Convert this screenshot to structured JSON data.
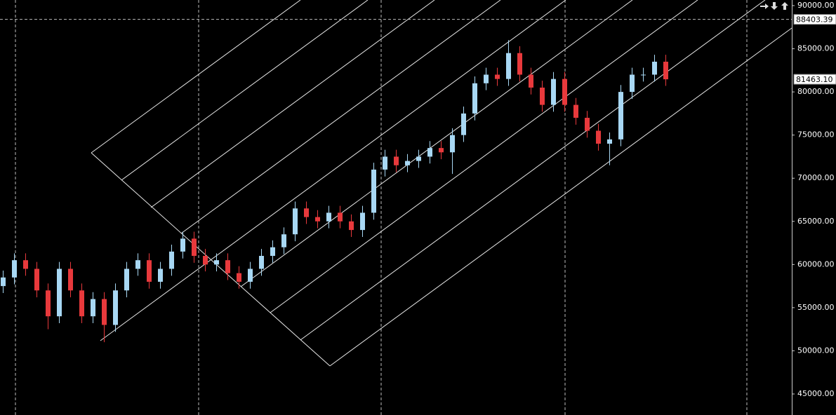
{
  "chart_data": {
    "type": "candlestick",
    "up_color": "#a8d8f4",
    "down_color": "#e8393c",
    "open": [
      57500,
      58500,
      60500,
      59500,
      57000,
      54000,
      59500,
      57000,
      54000,
      56000,
      53000,
      57000,
      59500,
      60500,
      58000,
      59500,
      61500,
      63000,
      61000,
      60000,
      60500,
      59000,
      58000,
      59500,
      61000,
      62000,
      63500,
      66500,
      65500,
      65000,
      66000,
      65000,
      64000,
      66000,
      71000,
      72500,
      71500,
      72000,
      72500,
      73500,
      73000,
      75000,
      77500,
      81000,
      82000,
      81500,
      84500,
      82000,
      80500,
      78500,
      81500,
      78500,
      77000,
      75500,
      74000,
      74500,
      80000,
      82000,
      82000,
      83500
    ],
    "high": [
      59300,
      61300,
      61300,
      60300,
      57800,
      60300,
      60300,
      57800,
      56800,
      56800,
      57800,
      60300,
      61300,
      61300,
      60300,
      62300,
      63800,
      63800,
      61800,
      61300,
      61300,
      59800,
      60300,
      61800,
      62800,
      64300,
      67300,
      67300,
      66300,
      66800,
      66800,
      65800,
      66800,
      71800,
      73300,
      73300,
      72800,
      73300,
      74300,
      74300,
      75800,
      78300,
      81800,
      82800,
      82800,
      86000,
      85300,
      82800,
      81300,
      82300,
      82300,
      79300,
      77800,
      76300,
      75300,
      80800,
      82800,
      82800,
      84300,
      84300
    ],
    "low": [
      56700,
      57700,
      58700,
      56200,
      52500,
      53200,
      56200,
      53200,
      53200,
      51000,
      52200,
      56200,
      58700,
      57200,
      57200,
      58700,
      60700,
      60200,
      59200,
      59200,
      58200,
      57200,
      57200,
      58700,
      60200,
      61200,
      62700,
      64700,
      64200,
      64200,
      64200,
      63200,
      63200,
      65200,
      70200,
      70700,
      70700,
      71200,
      71700,
      72200,
      70500,
      74200,
      76700,
      80200,
      80700,
      80700,
      81200,
      79700,
      77700,
      77700,
      77700,
      76200,
      74700,
      73200,
      71500,
      73700,
      79200,
      81200,
      81200,
      80700
    ],
    "close": [
      58500,
      60500,
      59500,
      57000,
      54000,
      59500,
      57000,
      54000,
      56000,
      53000,
      57000,
      59500,
      60500,
      58000,
      59500,
      61500,
      63000,
      61000,
      60000,
      60500,
      59000,
      58000,
      59500,
      61000,
      62000,
      63500,
      66500,
      65500,
      65000,
      66000,
      65000,
      64000,
      66000,
      71000,
      72500,
      71500,
      72000,
      72500,
      73500,
      73000,
      75000,
      77500,
      81000,
      82000,
      81500,
      84500,
      82000,
      80500,
      78500,
      81500,
      78500,
      77000,
      75500,
      74000,
      74500,
      80000,
      82000,
      82000,
      83500,
      81463.1
    ],
    "ylim": [
      42563,
      90650
    ],
    "yticks": [
      {
        "value": 90000,
        "label": "90000.00"
      },
      {
        "value": 85000,
        "label": "85000.00"
      },
      {
        "value": 80000,
        "label": "80000.00"
      },
      {
        "value": 75000,
        "label": "75000.00"
      },
      {
        "value": 70000,
        "label": "70000.00"
      },
      {
        "value": 65000,
        "label": "65000.00"
      },
      {
        "value": 60000,
        "label": "60000.00"
      },
      {
        "value": 55000,
        "label": "55000.00"
      },
      {
        "value": 50000,
        "label": "50000.00"
      },
      {
        "value": 45000,
        "label": "45000.00"
      }
    ],
    "crosshair_price": 88403.39,
    "last_price": {
      "value": 81463.1,
      "label": "81463.10"
    }
  }
}
